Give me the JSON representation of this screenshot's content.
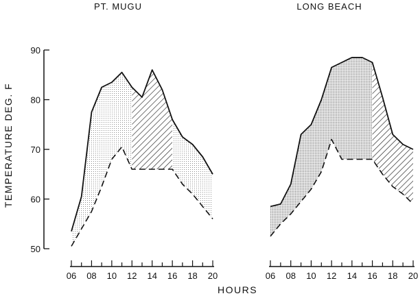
{
  "chart_data": [
    {
      "type": "area",
      "title": "PT. MUGU",
      "xlabel": "HOURS",
      "ylabel": "TEMPERATURE DEG. F",
      "xlim": [
        6,
        20
      ],
      "ylim": [
        50,
        90
      ],
      "xticks": [
        "06",
        "08",
        "10",
        "12",
        "14",
        "16",
        "18",
        "20"
      ],
      "yticks": [
        "50",
        "60",
        "70",
        "80",
        "90"
      ],
      "series": [
        {
          "style": "solid",
          "x": [
            6,
            7,
            8,
            9,
            10,
            11,
            12,
            13,
            14,
            15,
            16,
            17,
            18,
            19,
            20
          ],
          "y": [
            53.5,
            60.5,
            77.5,
            82.5,
            83.5,
            85.5,
            82.5,
            80.5,
            86,
            82,
            76,
            72.5,
            71,
            68.5,
            65
          ]
        },
        {
          "style": "dashed",
          "x": [
            6,
            7,
            8,
            9,
            10,
            11,
            12,
            13,
            14,
            15,
            16,
            17,
            18,
            19,
            20
          ],
          "y": [
            50.5,
            54,
            57.5,
            62.5,
            68,
            70.5,
            66,
            66,
            66,
            66,
            66,
            63,
            61,
            58.5,
            56
          ]
        }
      ],
      "fill_between": true,
      "x_shading_changes": [
        12,
        16
      ]
    },
    {
      "type": "area",
      "title": "LONG BEACH",
      "xlabel": "HOURS",
      "xlim": [
        6,
        20
      ],
      "ylim": [
        50,
        90
      ],
      "xticks": [
        "06",
        "08",
        "10",
        "12",
        "14",
        "16",
        "18",
        "20"
      ],
      "series": [
        {
          "style": "solid",
          "x": [
            6,
            7,
            8,
            9,
            10,
            11,
            12,
            13,
            14,
            15,
            16,
            17,
            18,
            19,
            20
          ],
          "y": [
            58.5,
            59,
            63,
            73,
            75,
            80,
            86.5,
            87.5,
            88.5,
            88.5,
            87.5,
            80.5,
            73,
            71,
            70
          ]
        },
        {
          "style": "dashed",
          "x": [
            6,
            7,
            8,
            9,
            10,
            11,
            12,
            13,
            14,
            15,
            16,
            17,
            18,
            19,
            20
          ],
          "y": [
            52.5,
            55,
            57,
            59.5,
            62,
            65.5,
            72,
            68,
            68,
            68,
            68,
            65,
            62.5,
            61,
            59
          ]
        }
      ],
      "fill_between": true,
      "x_shading_changes": [
        16
      ]
    }
  ]
}
